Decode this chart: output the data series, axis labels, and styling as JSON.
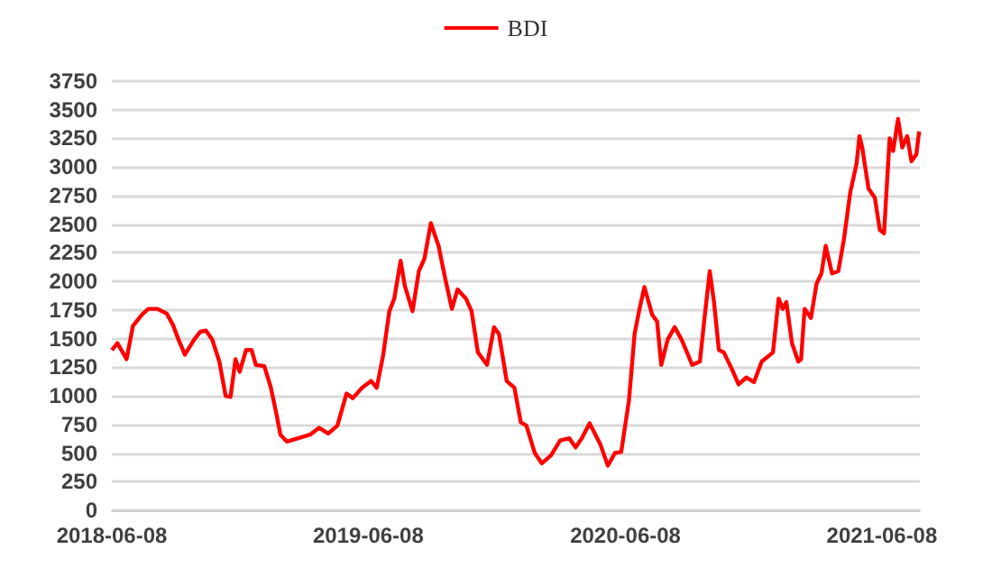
{
  "chart_data": {
    "type": "line",
    "legend": "top",
    "grid": "y",
    "marker": "none",
    "line_style": "solid",
    "xlim": [
      "2018-06-08",
      "2021-08-01"
    ],
    "xticks": [
      "2018-06-08",
      "2019-06-08",
      "2020-06-08",
      "2021-06-08"
    ],
    "ylim": [
      0,
      3750
    ],
    "yticks": [
      0,
      250,
      500,
      750,
      1000,
      1250,
      1500,
      1750,
      2000,
      2250,
      2500,
      2750,
      3000,
      3250,
      3500,
      3750
    ],
    "x": [
      "2018-06-08",
      "2018-06-16",
      "2018-06-29",
      "2018-07-08",
      "2018-07-21",
      "2018-07-30",
      "2018-08-12",
      "2018-08-25",
      "2018-09-03",
      "2018-09-11",
      "2018-09-20",
      "2018-10-03",
      "2018-10-12",
      "2018-10-20",
      "2018-10-29",
      "2018-11-08",
      "2018-11-17",
      "2018-11-24",
      "2018-12-01",
      "2018-12-07",
      "2018-12-16",
      "2018-12-24",
      "2018-12-30",
      "2019-01-11",
      "2019-01-20",
      "2019-01-28",
      "2019-02-03",
      "2019-02-12",
      "2019-02-28",
      "2019-03-17",
      "2019-03-30",
      "2019-04-12",
      "2019-04-25",
      "2019-05-08",
      "2019-05-17",
      "2019-05-30",
      "2019-06-12",
      "2019-06-20",
      "2019-06-29",
      "2019-07-08",
      "2019-07-15",
      "2019-07-24",
      "2019-07-30",
      "2019-08-10",
      "2019-08-19",
      "2019-08-27",
      "2019-09-05",
      "2019-09-16",
      "2019-09-26",
      "2019-10-05",
      "2019-10-13",
      "2019-10-25",
      "2019-11-02",
      "2019-11-11",
      "2019-11-24",
      "2019-12-04",
      "2019-12-11",
      "2019-12-22",
      "2020-01-02",
      "2020-01-11",
      "2020-01-19",
      "2020-01-31",
      "2020-02-10",
      "2020-02-23",
      "2020-03-07",
      "2020-03-20",
      "2020-03-29",
      "2020-04-07",
      "2020-04-18",
      "2020-05-03",
      "2020-05-14",
      "2020-05-24",
      "2020-06-02",
      "2020-06-13",
      "2020-06-21",
      "2020-06-28",
      "2020-07-05",
      "2020-07-16",
      "2020-07-23",
      "2020-07-29",
      "2020-08-07",
      "2020-08-17",
      "2020-08-27",
      "2020-09-11",
      "2020-09-22",
      "2020-09-28",
      "2020-10-06",
      "2020-10-12",
      "2020-10-19",
      "2020-10-26",
      "2020-11-06",
      "2020-11-16",
      "2020-11-27",
      "2020-12-08",
      "2020-12-19",
      "2021-01-04",
      "2021-01-12",
      "2021-01-18",
      "2021-01-23",
      "2021-01-31",
      "2021-02-09",
      "2021-02-13",
      "2021-02-18",
      "2021-02-27",
      "2021-03-07",
      "2021-03-14",
      "2021-03-20",
      "2021-03-29",
      "2021-04-07",
      "2021-04-15",
      "2021-04-24",
      "2021-05-03",
      "2021-05-07",
      "2021-05-11",
      "2021-05-20",
      "2021-05-29",
      "2021-06-05",
      "2021-06-11",
      "2021-06-19",
      "2021-06-24",
      "2021-07-01",
      "2021-07-07",
      "2021-07-14",
      "2021-07-20",
      "2021-07-27",
      "2021-07-31"
    ],
    "series": [
      {
        "name": "BDI",
        "color": "#ff0000",
        "values": [
          1400,
          1460,
          1320,
          1610,
          1710,
          1760,
          1760,
          1720,
          1620,
          1490,
          1360,
          1490,
          1560,
          1570,
          1490,
          1300,
          1000,
          990,
          1320,
          1210,
          1400,
          1400,
          1270,
          1260,
          1080,
          850,
          660,
          600,
          630,
          660,
          720,
          670,
          740,
          1020,
          980,
          1070,
          1130,
          1070,
          1350,
          1740,
          1850,
          2180,
          1960,
          1740,
          2090,
          2200,
          2510,
          2310,
          2010,
          1760,
          1930,
          1850,
          1740,
          1380,
          1270,
          1600,
          1540,
          1130,
          1070,
          770,
          740,
          500,
          410,
          480,
          610,
          630,
          550,
          630,
          760,
          580,
          390,
          500,
          510,
          960,
          1540,
          1760,
          1950,
          1710,
          1650,
          1270,
          1490,
          1600,
          1490,
          1270,
          1300,
          1650,
          2090,
          1820,
          1400,
          1380,
          1240,
          1100,
          1160,
          1120,
          1300,
          1380,
          1850,
          1760,
          1820,
          1460,
          1300,
          1320,
          1760,
          1680,
          1980,
          2070,
          2310,
          2070,
          2090,
          2370,
          2780,
          3030,
          3270,
          3170,
          2810,
          2730,
          2450,
          2420,
          3250,
          3140,
          3420,
          3170,
          3270,
          3050,
          3110,
          3310
        ]
      }
    ]
  }
}
